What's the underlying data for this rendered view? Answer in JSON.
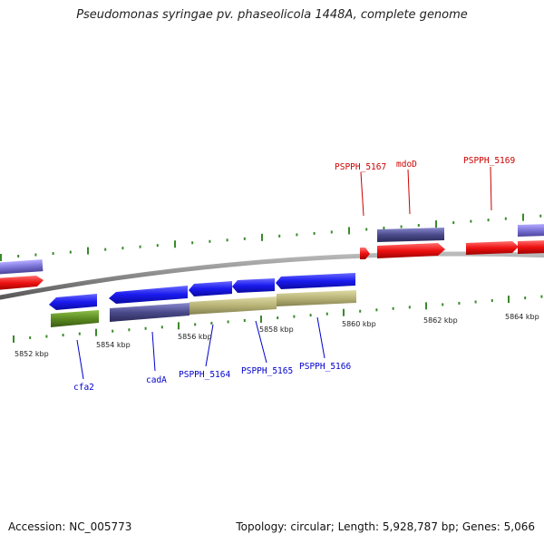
{
  "title": "Pseudomonas syringae pv. phaseolicola 1448A, complete genome",
  "footer": {
    "accession": "Accession: NC_005773",
    "summary": "Topology: circular; Length: 5,928,787 bp; Genes: 5,066"
  },
  "colors": {
    "backbone": "#8c8c8c",
    "tick": "#3a8a2a",
    "forward_label": "#cc0000",
    "reverse_label": "#0000cc",
    "blue_cds": "#1a1aee",
    "red_cds": "#ee1111",
    "purple_feature": "#4a4a8a",
    "lavender_feature": "#7c74d8",
    "khaki_feature": "#b8b478",
    "olive_feature": "#5c8a22"
  },
  "scale_ticks": [
    "5852 kbp",
    "5854 kbp",
    "5856 kbp",
    "5858 kbp",
    "5860 kbp",
    "5862 kbp",
    "5864 kbp"
  ],
  "gene_labels": {
    "forward": [
      "PSPPH_5167",
      "mdoD",
      "PSPPH_5169"
    ],
    "reverse": [
      "cfa2",
      "cadA",
      "PSPPH_5164",
      "PSPPH_5165",
      "PSPPH_5166"
    ]
  }
}
